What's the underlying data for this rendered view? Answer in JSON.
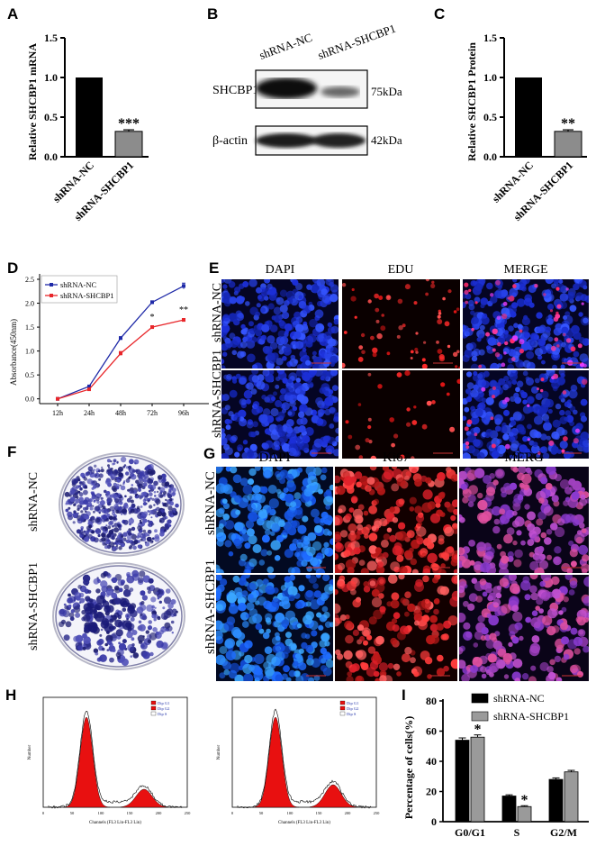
{
  "figure": {
    "panels": {
      "A": {
        "label": "A"
      },
      "B": {
        "label": "B",
        "columns": [
          "shRNA-NC",
          "shRNA-SHCBP1"
        ],
        "rows": [
          {
            "protein": "SHCBP1",
            "size": "75kDa"
          },
          {
            "protein": "β-actin",
            "size": "42kDa"
          }
        ]
      },
      "C": {
        "label": "C"
      },
      "D": {
        "label": "D"
      },
      "E": {
        "label": "E",
        "columns": [
          "DAPI",
          "EDU",
          "MERGE"
        ],
        "rows": [
          "shRNA-NC",
          "shRNA-SHCBP1"
        ]
      },
      "F": {
        "label": "F",
        "rows": [
          "shRNA-NC",
          "shRNA-SHCBP1"
        ]
      },
      "G": {
        "label": "G",
        "columns": [
          "DAPI",
          "Ki67",
          "MERG"
        ],
        "rows": [
          "shRNA-NC",
          "shRNA-SHCBP1"
        ]
      },
      "H": {
        "label": "H",
        "legend": [
          "Dip G1",
          "Dip G2",
          "Dip S"
        ],
        "xlabel": "Channels (FL3 Lin-FL3 Lin)",
        "ylabel": "Number"
      },
      "I": {
        "label": "I"
      }
    }
  },
  "chart_data": [
    {
      "panel": "A",
      "type": "bar",
      "categories": [
        "shRNA-NC",
        "shRNA-SHCBP1"
      ],
      "values": [
        1.0,
        0.32
      ],
      "errors": [
        0,
        0.02
      ],
      "colors": [
        "#000000",
        "#8c8c8c"
      ],
      "annotations": [
        "",
        "***"
      ],
      "title": "",
      "xlabel": "",
      "ylabel": "Relative SHCBP1 mRNA",
      "ylim": [
        0,
        1.5
      ],
      "yticks": [
        "0.0",
        "0.5",
        "1.0",
        "1.5"
      ]
    },
    {
      "panel": "C",
      "type": "bar",
      "categories": [
        "shRNA-NC",
        "shRNA-SHCBP1"
      ],
      "values": [
        1.0,
        0.32
      ],
      "errors": [
        0,
        0.02
      ],
      "colors": [
        "#000000",
        "#8c8c8c"
      ],
      "annotations": [
        "",
        "**"
      ],
      "title": "",
      "xlabel": "",
      "ylabel": "Relative SHCBP1 Protein",
      "ylim": [
        0,
        1.5
      ],
      "yticks": [
        "0.0",
        "0.5",
        "1.0",
        "1.5"
      ]
    },
    {
      "panel": "D",
      "type": "line",
      "x": [
        "12h",
        "24h",
        "48h",
        "72h",
        "96h"
      ],
      "series": [
        {
          "name": "shRNA-NC",
          "color": "#1f2aa8",
          "values": [
            0.0,
            0.26,
            1.27,
            2.02,
            2.36
          ],
          "errors": [
            0.01,
            0.02,
            0.03,
            0.03,
            0.06
          ]
        },
        {
          "name": "shRNA-SHCBP1",
          "color": "#e8262a",
          "values": [
            0.0,
            0.2,
            0.95,
            1.5,
            1.65
          ],
          "errors": [
            0.01,
            0.02,
            0.04,
            0.03,
            0.03
          ]
        }
      ],
      "annotations": [
        {
          "x": "72h",
          "text": "*"
        },
        {
          "x": "96h",
          "text": "**"
        }
      ],
      "title": "",
      "xlabel": "",
      "ylabel": "Absorbance(450nm)",
      "ylim": [
        -0.1,
        2.5
      ],
      "yticks": [
        "0.0",
        "0.5",
        "1.0",
        "1.5",
        "2.0",
        "2.5"
      ],
      "legend_position": "upper left"
    },
    {
      "panel": "I",
      "type": "bar",
      "categories": [
        "G0/G1",
        "S",
        "G2/M"
      ],
      "series": [
        {
          "name": "shRNA-NC",
          "color": "#000000",
          "values": [
            54,
            17,
            28
          ],
          "errors": [
            1.5,
            0.8,
            1.0
          ]
        },
        {
          "name": "shRNA-SHCBP1",
          "color": "#9a9a9a",
          "values": [
            56,
            10,
            33
          ],
          "errors": [
            1.5,
            0.6,
            1.0
          ]
        }
      ],
      "annotations": [
        {
          "category": "G0/G1",
          "series": "shRNA-SHCBP1",
          "text": "*"
        },
        {
          "category": "S",
          "series": "shRNA-SHCBP1",
          "text": "*"
        }
      ],
      "title": "",
      "xlabel": "",
      "ylabel": "Percentage of cells(%)",
      "ylim": [
        0,
        80
      ],
      "yticks": [
        "0",
        "20",
        "40",
        "60",
        "80"
      ],
      "legend_position": "upper right"
    }
  ]
}
